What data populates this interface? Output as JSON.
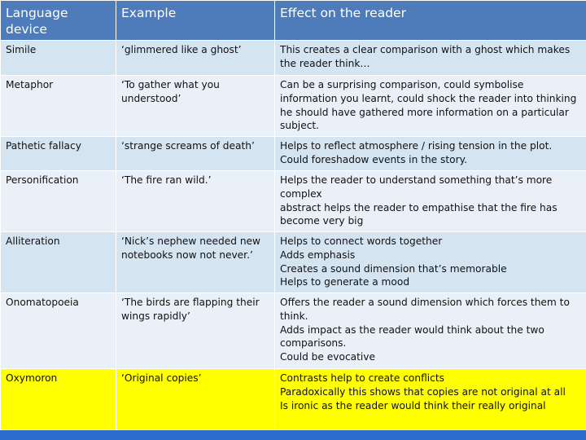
{
  "table": {
    "headers": [
      "Language device",
      "Example",
      "Effect on the reader"
    ],
    "rows": [
      {
        "device": "Simile",
        "example": "‘glimmered like a ghost’",
        "effect": [
          "This creates a clear comparison with a ghost which makes the reader think…"
        ]
      },
      {
        "device": "Metaphor",
        "example": "‘To gather what you understood’",
        "effect": [
          "Can be a surprising comparison, could symbolise information you learnt, could shock the reader into thinking he should have gathered more information on a particular subject."
        ]
      },
      {
        "device": "Pathetic fallacy",
        "example": "‘strange screams of death’",
        "effect": [
          "Helps to reflect atmosphere / rising tension in the plot. Could foreshadow events in the story."
        ]
      },
      {
        "device": "Personification",
        "example": "‘The fire ran wild.’",
        "effect": [
          "Helps the reader to understand something that’s more complex",
          "abstract helps the reader to empathise that the fire has become very big"
        ]
      },
      {
        "device": "Alliteration",
        "example": "‘Nick’s nephew needed new notebooks now not never.’",
        "effect": [
          "Helps to connect words together",
          "Adds emphasis",
          "Creates a sound dimension that’s memorable",
          "Helps to generate a mood"
        ]
      },
      {
        "device": "Onomatopoeia",
        "example": "‘The birds are flapping their wings rapidly’",
        "effect": [
          "Offers the reader a sound dimension which forces them to think.",
          "Adds impact as the reader would think about the two comparisons.",
          "Could be evocative"
        ]
      },
      {
        "device": "Oxymoron",
        "example": "‘Original copies’",
        "effect": [
          "Contrasts help to create conflicts",
          "Paradoxically this shows that copies are not original at all",
          "Is ironic as the reader would think their really original"
        ]
      }
    ]
  },
  "colors": {
    "header_bg": "#4e7cbb",
    "row_dark": "#d5e4f1",
    "row_light": "#e9f0f7",
    "highlight": "#ffff00",
    "bottom_bar": "#2d6ccf"
  }
}
